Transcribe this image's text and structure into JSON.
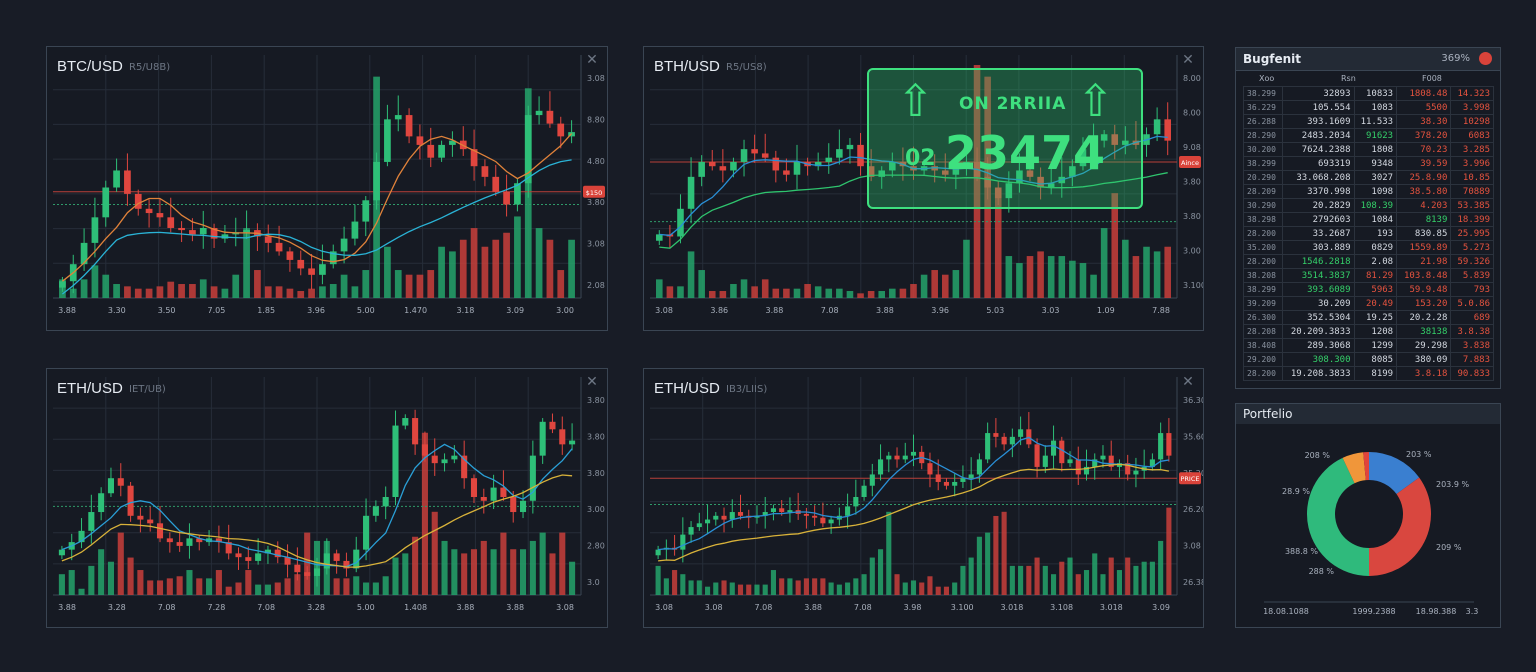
{
  "charts": [
    {
      "title": "BTC/USD",
      "subtitle": "R5/U8B)",
      "y_labels": [
        "3.08",
        "8.80",
        "4.80",
        "3.80",
        "3.08",
        "2.08"
      ],
      "x_labels": [
        "3.88",
        "3.30",
        "3.50",
        "7.05",
        "1.85",
        "3.96",
        "5.00",
        "1.470",
        "3.18",
        "3.09",
        "3.00"
      ],
      "price_tag": "$150",
      "price_level": 48,
      "dotted_level": 42,
      "ma_colors": [
        "#e0823a",
        "#2ab3d6"
      ],
      "closes": [
        6,
        14,
        24,
        36,
        50,
        58,
        47,
        40,
        38,
        36,
        31,
        30,
        28,
        31,
        26,
        28,
        29,
        30,
        27,
        24,
        20,
        16,
        12,
        9,
        14,
        20,
        26,
        34,
        44,
        62,
        82,
        84,
        74,
        70,
        64,
        70,
        72,
        68,
        60,
        55,
        48,
        42,
        52,
        84,
        86,
        80,
        74,
        76
      ],
      "volumes": [
        8,
        4,
        8,
        14,
        10,
        6,
        5,
        4,
        4,
        5,
        7,
        6,
        6,
        8,
        5,
        4,
        10,
        30,
        12,
        5,
        5,
        4,
        3,
        4,
        5,
        6,
        10,
        5,
        12,
        95,
        22,
        12,
        10,
        10,
        12,
        22,
        20,
        25,
        30,
        22,
        25,
        28,
        35,
        90,
        30,
        25,
        12,
        25
      ]
    },
    {
      "title": "BTH/USD",
      "subtitle": "R5/US8)",
      "y_labels": [
        "8.00",
        "8.00",
        "9.08",
        "3.80",
        "3.80",
        "3.00",
        "3.100"
      ],
      "x_labels": [
        "3.08",
        "3.86",
        "3.88",
        "7.08",
        "3.88",
        "3.96",
        "5.03",
        "3.03",
        "1.09",
        "7.88"
      ],
      "price_tag": "Aince",
      "price_level": 62,
      "dotted_level": 34,
      "ma_colors": [
        "#2a8fd6",
        "#2fc46e"
      ],
      "closes": [
        28,
        27,
        40,
        55,
        62,
        60,
        58,
        62,
        68,
        66,
        64,
        58,
        56,
        62,
        60,
        62,
        64,
        68,
        70,
        60,
        55,
        58,
        62,
        60,
        58,
        60,
        58,
        56,
        60,
        62,
        55,
        50,
        45,
        52,
        58,
        55,
        50,
        52,
        55,
        60,
        68,
        72,
        75,
        70,
        72,
        70,
        75,
        82,
        72
      ],
      "volumes": [
        8,
        5,
        5,
        20,
        12,
        3,
        3,
        6,
        8,
        5,
        8,
        4,
        4,
        4,
        6,
        5,
        4,
        4,
        3,
        2,
        3,
        3,
        4,
        4,
        6,
        10,
        12,
        10,
        12,
        25,
        100,
        95,
        45,
        18,
        15,
        18,
        20,
        18,
        18,
        16,
        15,
        10,
        30,
        45,
        25,
        18,
        22,
        20,
        22
      ],
      "overlay": {
        "arrow": "⇧",
        "headline": "ON 2RRIIA",
        "prefix": "02",
        "value": "23474"
      }
    },
    {
      "title": "ETH/USD",
      "subtitle": "IET/UB)",
      "y_labels": [
        "3.80",
        "3.80",
        "3.80",
        "3.00",
        "2.80",
        "3.0"
      ],
      "x_labels": [
        "3.88",
        "3.28",
        "7.08",
        "7.28",
        "7.08",
        "3.28",
        "5.00",
        "1.408",
        "3.88",
        "3.88",
        "3.08"
      ],
      "price_tag": "",
      "price_level": null,
      "dotted_level": 45,
      "ma_colors": [
        "#2a9fd6",
        "#d8b23a"
      ],
      "closes": [
        22,
        26,
        32,
        42,
        52,
        60,
        56,
        40,
        38,
        36,
        28,
        26,
        24,
        28,
        26,
        28,
        26,
        20,
        18,
        16,
        20,
        22,
        18,
        14,
        10,
        8,
        12,
        20,
        16,
        12,
        22,
        40,
        45,
        50,
        88,
        92,
        78,
        72,
        68,
        70,
        72,
        60,
        50,
        48,
        55,
        50,
        42,
        48,
        72,
        90,
        86,
        78,
        80
      ],
      "volumes": [
        10,
        12,
        3,
        14,
        22,
        16,
        30,
        18,
        12,
        7,
        7,
        8,
        9,
        12,
        8,
        8,
        12,
        4,
        6,
        12,
        5,
        5,
        6,
        8,
        10,
        30,
        26,
        26,
        8,
        8,
        9,
        6,
        6,
        9,
        18,
        20,
        28,
        78,
        40,
        26,
        22,
        20,
        22,
        26,
        22,
        30,
        22,
        22,
        26,
        30,
        20,
        30,
        16,
        14
      ]
    },
    {
      "title": "ETH/USD",
      "subtitle": "IB3/LIIS)",
      "y_labels": [
        "36.300",
        "35.600",
        "35.200",
        "26.208",
        "3.08",
        "26.388"
      ],
      "x_labels": [
        "3.08",
        "3.08",
        "7.08",
        "3.88",
        "7.08",
        "3.98",
        "3.100",
        "3.018",
        "3.108",
        "3.018",
        "3.09"
      ],
      "price_tag": "PRICE",
      "price_level": 60,
      "dotted_level": 46,
      "ma_colors": [
        "#2a8fd6",
        "#d8b23a"
      ],
      "closes": [
        22,
        23,
        22,
        30,
        34,
        36,
        38,
        40,
        38,
        42,
        40,
        39,
        40,
        42,
        44,
        42,
        43,
        41,
        40,
        39,
        36,
        38,
        40,
        45,
        50,
        56,
        62,
        70,
        72,
        70,
        72,
        74,
        68,
        62,
        58,
        56,
        58,
        60,
        62,
        70,
        84,
        82,
        78,
        82,
        86,
        78,
        66,
        72,
        80,
        68,
        70,
        62,
        66,
        70,
        72,
        66,
        68,
        62,
        64,
        66,
        70,
        84,
        72
      ],
      "volumes": [
        14,
        8,
        12,
        10,
        7,
        7,
        4,
        6,
        7,
        6,
        5,
        5,
        5,
        5,
        12,
        8,
        8,
        7,
        8,
        8,
        8,
        6,
        5,
        6,
        8,
        10,
        18,
        22,
        40,
        10,
        6,
        7,
        6,
        9,
        4,
        4,
        6,
        14,
        18,
        28,
        30,
        38,
        40,
        14,
        14,
        14,
        18,
        14,
        10,
        16,
        18,
        10,
        12,
        20,
        10,
        18,
        12,
        18,
        14,
        16,
        16,
        26,
        42,
        52
      ]
    }
  ],
  "order_book": {
    "title": "Bugfenit",
    "percent": "369%",
    "columns": [
      "Xoo",
      "Rsn",
      "F008"
    ],
    "rows": [
      {
        "c": [
          "38.299",
          "32893",
          "10833",
          "1808.48",
          "14.323"
        ],
        "k": "wwrr"
      },
      {
        "c": [
          "36.229",
          "105.554",
          "1083",
          "5500",
          "3.998"
        ],
        "k": "wwrr"
      },
      {
        "c": [
          "26.288",
          "393.1609",
          "11.533",
          "38.30",
          "10298"
        ],
        "k": "wwrr"
      },
      {
        "c": [
          "28.290",
          "2483.2034",
          "91623",
          "378.20",
          "6083"
        ],
        "k": "wgrr"
      },
      {
        "c": [
          "30.200",
          "7624.2388",
          "1808",
          "70.23",
          "3.285"
        ],
        "k": "wwrr"
      },
      {
        "c": [
          "38.299",
          "693319",
          "9348",
          "39.59",
          "3.996"
        ],
        "k": "wwrr"
      },
      {
        "c": [
          "20.290",
          "33.068.208",
          "3027",
          "25.8.90",
          "10.85"
        ],
        "k": "wwrr"
      },
      {
        "c": [
          "28.209",
          "3370.998",
          "1098",
          "38.5.80",
          "70889"
        ],
        "k": "wwrr"
      },
      {
        "c": [
          "30.290",
          "20.2829",
          "108.39",
          "4.203",
          "53.385"
        ],
        "k": "wgrr"
      },
      {
        "c": [
          "38.298",
          "2792603",
          "1084",
          "8139",
          "18.399"
        ],
        "k": "wwgr"
      },
      {
        "c": [
          "28.200",
          "33.2687",
          "193",
          "830.85",
          "25.995"
        ],
        "k": "wwwr"
      },
      {
        "c": [
          "35.200",
          "303.889",
          "0829",
          "1559.89",
          "5.273"
        ],
        "k": "wwrr"
      },
      {
        "c": [
          "28.200",
          "1546.2818",
          "2.08",
          "21.98",
          "59.326"
        ],
        "k": "gwrr"
      },
      {
        "c": [
          "38.208",
          "3514.3837",
          "81.29",
          "103.8.48",
          "5.839"
        ],
        "k": "grrr"
      },
      {
        "c": [
          "38.299",
          "393.6089",
          "5963",
          "59.9.48",
          "793"
        ],
        "k": "grrr"
      },
      {
        "c": [
          "39.209",
          "30.209",
          "20.49",
          "153.20",
          "5.0.86"
        ],
        "k": "wrrr"
      },
      {
        "c": [
          "26.300",
          "352.5304",
          "19.25",
          "20.2.28",
          "689"
        ],
        "k": "wwwr"
      },
      {
        "c": [
          "28.208",
          "20.209.3833",
          "1208",
          "38138",
          "3.8.38"
        ],
        "k": "wwgr"
      },
      {
        "c": [
          "38.408",
          "289.3068",
          "1299",
          "29.298",
          "3.838"
        ],
        "k": "wwwr"
      },
      {
        "c": [
          "29.200",
          "308.300",
          "8085",
          "380.09",
          "7.883"
        ],
        "k": "gwwr"
      },
      {
        "c": [
          "28.200",
          "19.208.3833",
          "8199",
          "3.8.18",
          "90.833"
        ],
        "k": "wwrr"
      }
    ]
  },
  "portfolio": {
    "title": "Portfelio",
    "slices": [
      {
        "share": 15,
        "color": "#3a7fd0",
        "label": "203 %"
      },
      {
        "share": 35,
        "color": "#d9473f",
        "label": "203.9 %"
      },
      {
        "share": 43,
        "color": "#2fba7c",
        "label": "388.8 %"
      },
      {
        "share": 5.5,
        "color": "#f0963a",
        "label": "208 %"
      },
      {
        "share": 1.5,
        "color": "#e0443c",
        "label": ""
      }
    ],
    "extra_labels": [
      "209 %",
      "288 %",
      "28.9 %"
    ],
    "axis_labels": [
      "18.08.1088",
      "1999.2388",
      "18.98.388",
      "3.3"
    ]
  }
}
